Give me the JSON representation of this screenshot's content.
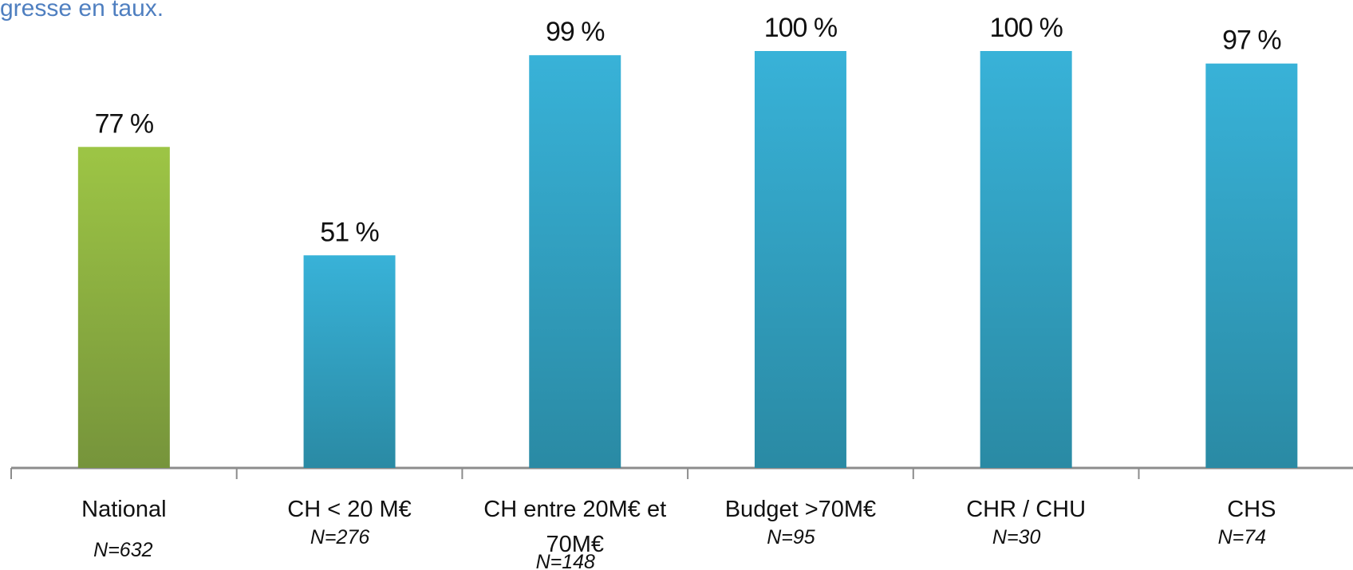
{
  "intro_fragment": "gresse en taux.",
  "colors": {
    "national_top": "#9dc545",
    "national_bottom": "#76943b",
    "segment_top": "#38b2d8",
    "segment_bottom": "#2a8aa4",
    "axis": "#8c8c8c"
  },
  "chart_data": {
    "type": "bar",
    "categories": [
      {
        "lines": [
          "National"
        ],
        "n": "N=632",
        "value": 77,
        "label": "77 %",
        "highlight": true
      },
      {
        "lines": [
          "CH < 20 M€"
        ],
        "n": "N=276",
        "value": 51,
        "label": "51 %",
        "highlight": false
      },
      {
        "lines": [
          "CH entre 20M€ et",
          "70M€"
        ],
        "n": "N=148",
        "value": 99,
        "label": "99 %",
        "highlight": false
      },
      {
        "lines": [
          "Budget >70M€"
        ],
        "n": "N=95",
        "value": 100,
        "label": "100 %",
        "highlight": false
      },
      {
        "lines": [
          "CHR / CHU"
        ],
        "n": "N=30",
        "value": 100,
        "label": "100 %",
        "highlight": false
      },
      {
        "lines": [
          "CHS"
        ],
        "n": "N=74",
        "value": 97,
        "label": "97 %",
        "highlight": false
      }
    ],
    "unit": "%",
    "ylim": [
      0,
      100
    ],
    "grid": false,
    "legend": "none"
  }
}
